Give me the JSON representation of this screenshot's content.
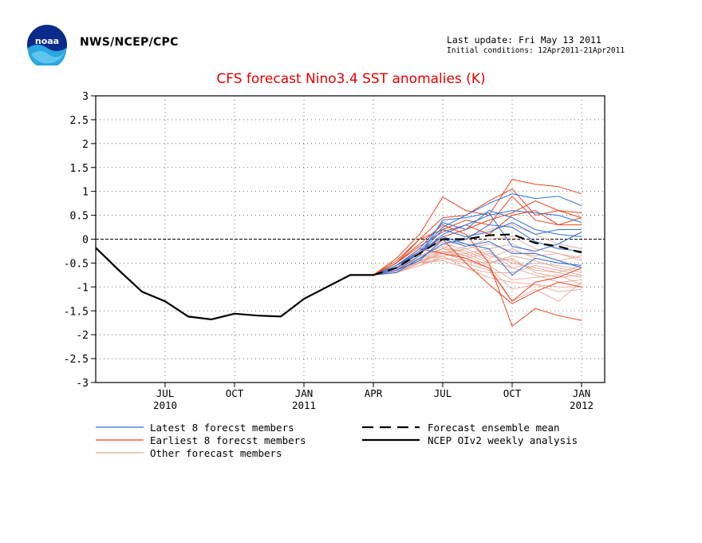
{
  "header": {
    "agency": "NWS/NCEP/CPC",
    "last_update": "Last update: Fri May 13 2011",
    "initial_conditions": "Initial conditions: 12Apr2011-21Apr2011"
  },
  "logo": {
    "icon": "noaa-logo",
    "text": "noaa"
  },
  "colors": {
    "latest": "#2f6fd6",
    "earliest": "#e8461e",
    "other": "#e8a898",
    "analysis": "#000000",
    "title": "#e00000"
  },
  "chart_data": {
    "type": "line",
    "title": "CFS forecast Nino3.4 SST anomalies (K)",
    "xlabel": "",
    "ylabel": "",
    "ylim": [
      -3,
      3
    ],
    "yticks": [
      -3,
      -2.5,
      -2,
      -1.5,
      -1,
      -0.5,
      0,
      0.5,
      1,
      1.5,
      2,
      2.5,
      3
    ],
    "ytick_labels": [
      "-3",
      "-2.5",
      "-2",
      "-1.5",
      "-1",
      "-0.5",
      "0",
      "0.5",
      "1",
      "1.5",
      "2",
      "2.5",
      "3"
    ],
    "xlim": [
      "2010-04",
      "2012-02"
    ],
    "x_ticks": [
      {
        "x": "2010-07",
        "label": "JUL",
        "year": "2010"
      },
      {
        "x": "2010-10",
        "label": "OCT",
        "year": ""
      },
      {
        "x": "2011-01",
        "label": "JAN",
        "year": "2011"
      },
      {
        "x": "2011-04",
        "label": "APR",
        "year": ""
      },
      {
        "x": "2011-07",
        "label": "JUL",
        "year": ""
      },
      {
        "x": "2011-10",
        "label": "OCT",
        "year": ""
      },
      {
        "x": "2012-01",
        "label": "JAN",
        "year": "2012"
      }
    ],
    "grid": true,
    "zero_line": true,
    "legend": {
      "placement": "bottom",
      "entries": [
        {
          "key": "latest",
          "label": "Latest 8 forecst members"
        },
        {
          "key": "earliest",
          "label": "Earliest 8 forecst members"
        },
        {
          "key": "other",
          "label": "Other forecast members"
        },
        {
          "key": "mean",
          "label": "Forecast ensemble mean"
        },
        {
          "key": "analysis",
          "label": "NCEP OIv2 weekly analysis"
        }
      ]
    },
    "analysis": {
      "name": "NCEP OIv2 weekly analysis",
      "x": [
        "2010-04",
        "2010-05",
        "2010-06",
        "2010-07",
        "2010-08",
        "2010-09",
        "2010-10",
        "2010-11",
        "2010-12",
        "2011-01",
        "2011-02",
        "2011-03",
        "2011-04"
      ],
      "y": [
        -0.18,
        -0.65,
        -1.1,
        -1.3,
        -1.62,
        -1.68,
        -1.56,
        -1.6,
        -1.62,
        -1.25,
        -1.0,
        -0.75,
        -0.75
      ]
    },
    "mean": {
      "name": "Forecast ensemble mean",
      "x": [
        "2011-04",
        "2011-05",
        "2011-06",
        "2011-07",
        "2011-08",
        "2011-09",
        "2011-10",
        "2011-11",
        "2011-12",
        "2012-01"
      ],
      "y": [
        -0.75,
        -0.6,
        -0.3,
        0.0,
        0.0,
        0.08,
        0.1,
        -0.08,
        -0.15,
        -0.28
      ]
    },
    "members_x": [
      "2011-04",
      "2011-05",
      "2011-06",
      "2011-07",
      "2011-08",
      "2011-09",
      "2011-10",
      "2011-11",
      "2011-12",
      "2012-01"
    ],
    "members": {
      "latest": [
        [
          -0.75,
          -0.55,
          -0.25,
          0.25,
          0.5,
          0.75,
          0.95,
          0.85,
          0.9,
          0.7
        ],
        [
          -0.75,
          -0.6,
          -0.3,
          0.1,
          0.3,
          0.5,
          0.6,
          0.55,
          0.5,
          0.35
        ],
        [
          -0.75,
          -0.65,
          -0.35,
          0.4,
          0.45,
          0.55,
          -0.15,
          -0.25,
          -0.1,
          0.15
        ],
        [
          -0.75,
          -0.55,
          -0.2,
          0.35,
          0.2,
          0.6,
          0.45,
          0.2,
          0.1,
          0.05
        ],
        [
          -0.75,
          -0.6,
          -0.3,
          0.05,
          -0.1,
          -0.2,
          -0.75,
          -0.4,
          -0.5,
          -0.55
        ],
        [
          -0.75,
          -0.7,
          -0.4,
          -0.1,
          0.0,
          0.3,
          0.25,
          -0.05,
          -0.2,
          -0.25
        ],
        [
          -0.75,
          -0.55,
          -0.3,
          0.2,
          0.05,
          0.15,
          0.35,
          0.1,
          0.2,
          0.2
        ],
        [
          -0.75,
          -0.65,
          -0.45,
          0.0,
          -0.15,
          -0.05,
          -0.3,
          -0.3,
          -0.45,
          -0.6
        ]
      ],
      "earliest": [
        [
          -0.75,
          -0.4,
          0.1,
          0.88,
          0.6,
          0.5,
          1.25,
          1.15,
          1.1,
          0.95
        ],
        [
          -0.75,
          -0.5,
          0.0,
          0.45,
          0.5,
          0.8,
          1.05,
          0.5,
          0.6,
          0.55
        ],
        [
          -0.75,
          -0.5,
          -0.1,
          0.3,
          0.1,
          -0.5,
          -1.82,
          -1.45,
          -1.6,
          -1.7
        ],
        [
          -0.75,
          -0.55,
          -0.2,
          -0.3,
          -0.4,
          -0.6,
          -1.3,
          -0.9,
          -0.8,
          -0.6
        ],
        [
          -0.75,
          -0.45,
          0.0,
          0.2,
          0.4,
          0.3,
          0.9,
          0.4,
          0.3,
          0.45
        ],
        [
          -0.75,
          -0.6,
          -0.3,
          0.0,
          -0.5,
          -0.95,
          -1.35,
          -1.1,
          -0.9,
          -1.0
        ],
        [
          -0.75,
          -0.5,
          -0.15,
          0.15,
          0.3,
          0.1,
          0.5,
          0.6,
          0.3,
          0.3
        ],
        [
          -0.75,
          -0.6,
          -0.25,
          0.05,
          0.2,
          0.4,
          0.55,
          0.8,
          0.6,
          0.45
        ]
      ],
      "other": [
        [
          -0.75,
          -0.65,
          -0.45,
          -0.35,
          -0.6,
          -0.8,
          -0.9,
          -0.95,
          -1.0,
          -1.0
        ],
        [
          -0.75,
          -0.7,
          -0.5,
          -0.25,
          -0.4,
          -0.3,
          -0.5,
          -0.6,
          -0.7,
          -0.8
        ],
        [
          -0.75,
          -0.7,
          -0.55,
          -0.4,
          -0.5,
          -0.65,
          -1.3,
          -1.05,
          -1.3,
          -0.9
        ],
        [
          -0.75,
          -0.6,
          -0.4,
          -0.1,
          -0.2,
          -0.4,
          -0.2,
          -0.4,
          -0.5,
          -0.55
        ],
        [
          -0.75,
          -0.65,
          -0.35,
          -0.2,
          -0.25,
          -0.45,
          -0.6,
          -0.75,
          -0.9,
          -0.85
        ],
        [
          -0.75,
          -0.7,
          -0.45,
          -0.3,
          -0.15,
          0.0,
          0.05,
          -0.2,
          -0.3,
          -0.4
        ],
        [
          -0.75,
          -0.6,
          -0.5,
          -0.45,
          -0.6,
          -0.7,
          -0.7,
          -0.55,
          -0.65,
          -0.75
        ],
        [
          -0.75,
          -0.65,
          -0.4,
          -0.05,
          -0.1,
          -0.35,
          -0.45,
          -0.65,
          -0.7,
          -0.55
        ],
        [
          -0.75,
          -0.7,
          -0.55,
          -0.35,
          -0.3,
          -0.2,
          -0.1,
          -0.3,
          -0.45,
          -0.35
        ],
        [
          -0.75,
          -0.62,
          -0.42,
          -0.25,
          -0.35,
          -0.55,
          -0.85,
          -0.8,
          -0.75,
          -0.95
        ],
        [
          -0.75,
          -0.68,
          -0.48,
          -0.2,
          0.05,
          0.2,
          0.3,
          0.1,
          -0.1,
          -0.2
        ],
        [
          -0.75,
          -0.6,
          -0.35,
          -0.15,
          -0.3,
          -0.5,
          -0.35,
          -0.45,
          -0.6,
          -0.7
        ],
        [
          -0.75,
          -0.7,
          -0.5,
          -0.3,
          -0.45,
          -0.6,
          -1.05,
          -0.95,
          -1.1,
          -1.05
        ],
        [
          -0.75,
          -0.65,
          -0.45,
          -0.3,
          -0.2,
          -0.1,
          -0.25,
          -0.35,
          -0.3,
          -0.45
        ],
        [
          -0.75,
          -0.6,
          -0.4,
          -0.2,
          -0.35,
          -0.25,
          -0.6,
          -0.5,
          -0.55,
          -0.65
        ],
        [
          -0.75,
          -0.7,
          -0.5,
          -0.4,
          -0.45,
          -0.5,
          -0.4,
          -0.7,
          -0.8,
          -0.75
        ]
      ]
    }
  }
}
